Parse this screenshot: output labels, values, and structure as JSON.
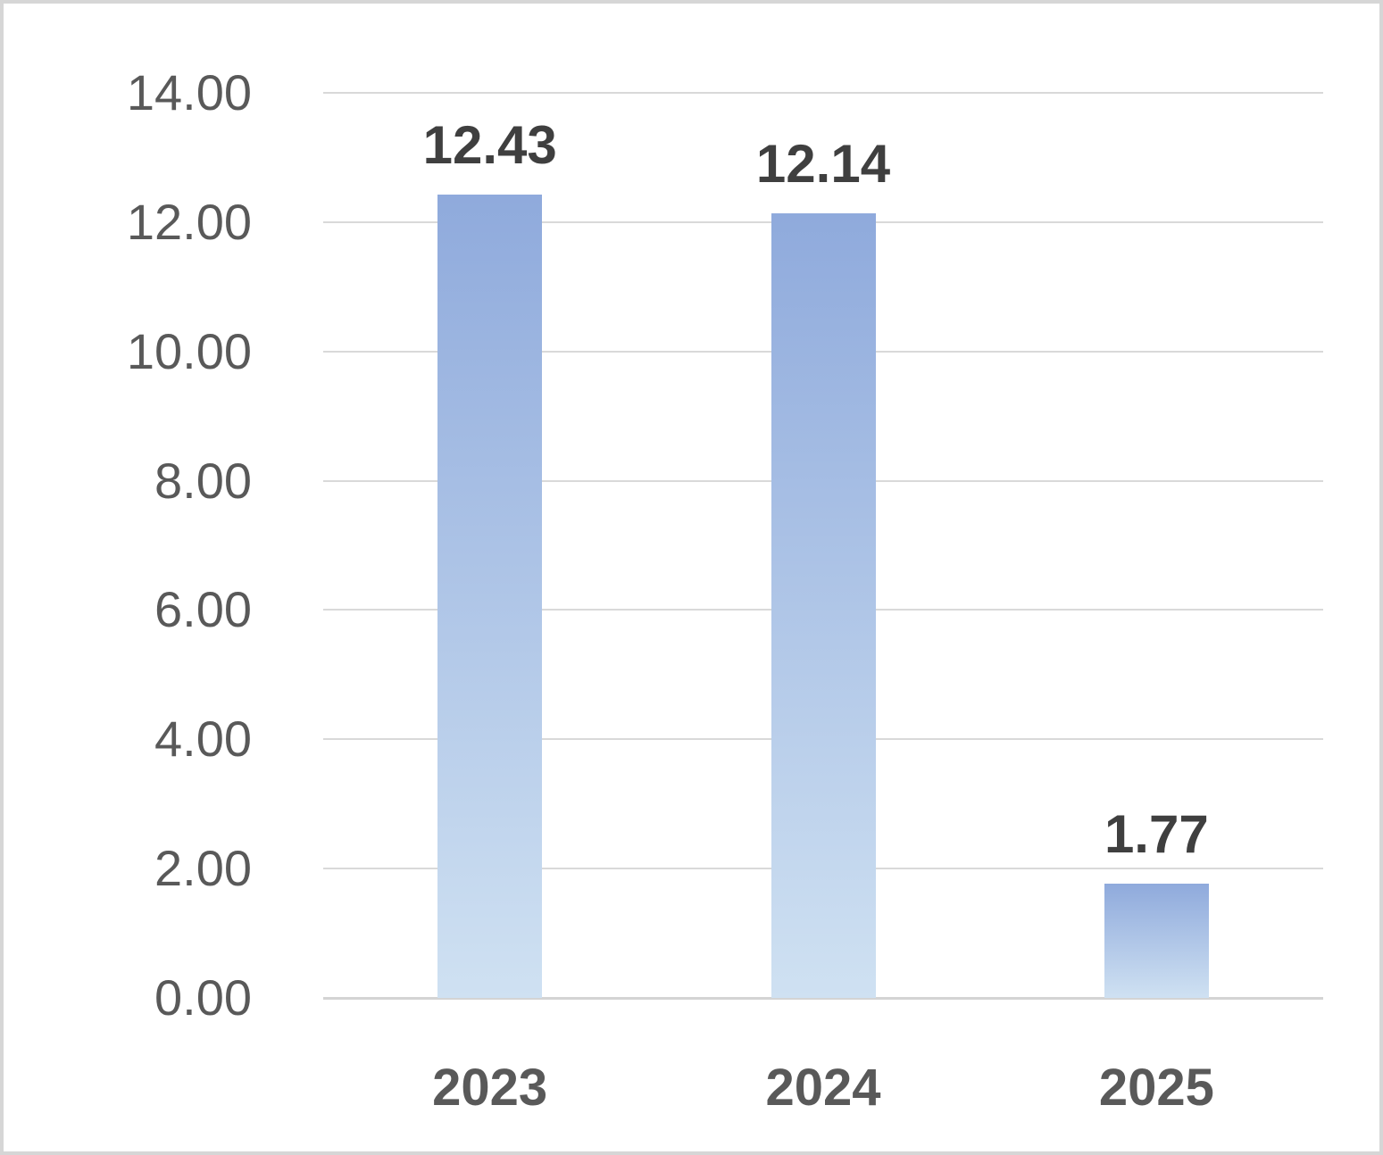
{
  "chart_data": {
    "type": "bar",
    "title": "",
    "xlabel": "",
    "ylabel": "",
    "categories": [
      "2023",
      "2024",
      "2025"
    ],
    "values": [
      12.43,
      12.14,
      1.77
    ],
    "value_labels": [
      "12.43",
      "12.14",
      "1.77"
    ],
    "ylim": [
      0,
      14
    ],
    "ytick_step": 2,
    "yticks": [
      "0.00",
      "2.00",
      "4.00",
      "6.00",
      "8.00",
      "10.00",
      "12.00",
      "14.00"
    ],
    "grid": true,
    "legend_position": "none",
    "colors": {
      "bar_gradient_top": "#8faadc",
      "bar_gradient_bottom": "#cfe1f2",
      "gridline": "#d9d9d9",
      "axis_line": "#d4d4d4",
      "tick_label": "#595959",
      "data_label": "#3f3f3f",
      "category_label": "#595959",
      "background": "#ffffff",
      "frame_border": "#d6d6d6"
    }
  }
}
